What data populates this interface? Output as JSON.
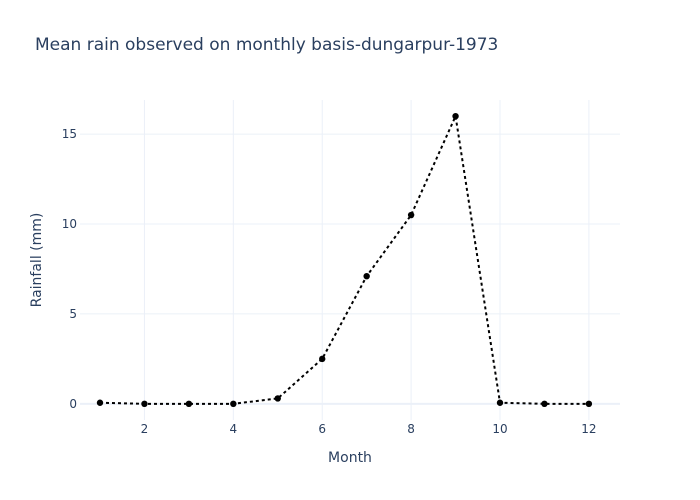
{
  "chart_data": {
    "type": "line",
    "title": "Mean rain observed on monthly basis-dungarpur-1973",
    "xlabel": "Month",
    "ylabel": "Rainfall (mm)",
    "xlim": [
      0.55,
      12.7
    ],
    "ylim": [
      -0.9,
      16.9
    ],
    "x_ticks": [
      2,
      4,
      6,
      8,
      10,
      12
    ],
    "y_ticks": [
      0,
      5,
      10,
      15
    ],
    "x_tick_labels": [
      "2",
      "4",
      "6",
      "8",
      "10",
      "12"
    ],
    "y_tick_labels": [
      "0",
      "5",
      "10",
      "15"
    ],
    "grid": true,
    "legend": false,
    "series": [
      {
        "x": [
          1,
          2,
          3,
          4,
          5,
          6,
          7,
          8,
          9,
          10,
          11,
          12
        ],
        "values": [
          0.06,
          0.0,
          0.0,
          0.0,
          0.3,
          2.5,
          7.1,
          10.5,
          16.0,
          0.06,
          0.0,
          0.0
        ],
        "color": "#000000",
        "line_style": "dotted",
        "markers": true
      }
    ]
  }
}
